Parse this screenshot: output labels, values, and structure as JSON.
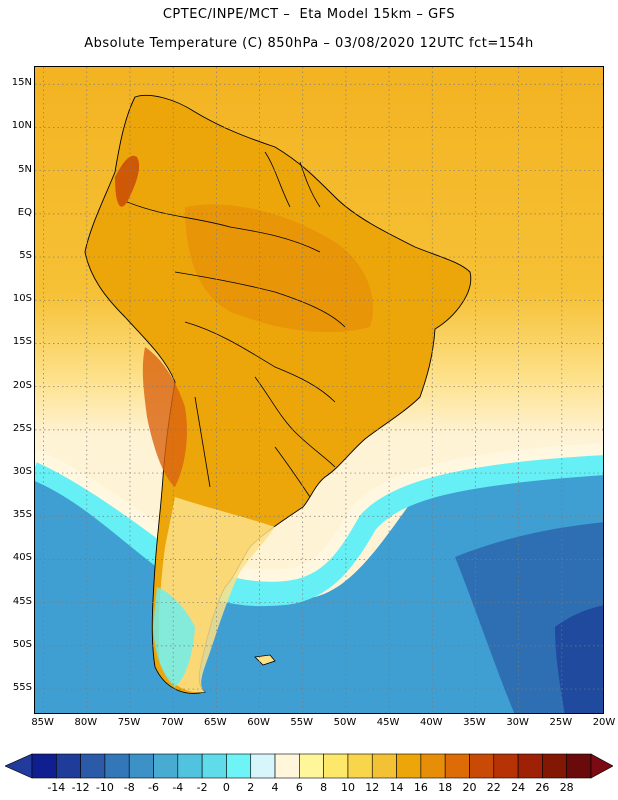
{
  "header": {
    "line1": "CPTEC/INPE/MCT –  Eta Model 15km – GFS",
    "line2": "Absolute Temperature (C) 850hPa – 03/08/2020 12UTC fct=154h"
  },
  "map": {
    "lat_labels": [
      "15N",
      "10N",
      "5N",
      "EQ",
      "5S",
      "10S",
      "15S",
      "20S",
      "25S",
      "30S",
      "35S",
      "40S",
      "45S",
      "50S",
      "55S"
    ],
    "lat_values": [
      15,
      10,
      5,
      0,
      -5,
      -10,
      -15,
      -20,
      -25,
      -30,
      -35,
      -40,
      -45,
      -50,
      -55
    ],
    "lat_range": [
      -58,
      17
    ],
    "lon_labels": [
      "85W",
      "80W",
      "75W",
      "70W",
      "65W",
      "60W",
      "55W",
      "50W",
      "45W",
      "40W",
      "35W",
      "30W",
      "25W",
      "20W"
    ],
    "lon_values": [
      -85,
      -80,
      -75,
      -70,
      -65,
      -60,
      -55,
      -50,
      -45,
      -40,
      -35,
      -30,
      -25,
      -20
    ],
    "lon_range": [
      -86,
      -20
    ],
    "grid": "dotted",
    "colors": {
      "land_hot": "#d9630f",
      "land_warm": "#eda60a",
      "ocean_trop": "#f5b91f",
      "ocean_mid": "#fce47a",
      "band_cream": "#fff7df",
      "band_cyan": "#66f5f5",
      "ocean_cold": "#3fa7d6",
      "ocean_colder": "#2f7dbd",
      "outline": "#000000"
    }
  },
  "colorbar": {
    "labels": [
      "-14",
      "-12",
      "-10",
      "-8",
      "-6",
      "-4",
      "-2",
      "0",
      "2",
      "4",
      "6",
      "8",
      "10",
      "12",
      "14",
      "16",
      "18",
      "20",
      "22",
      "24",
      "26",
      "28"
    ],
    "colors": [
      "#0f1f8f",
      "#1f3c9b",
      "#2a5aa8",
      "#3377b8",
      "#3c92c6",
      "#47abd2",
      "#52c3df",
      "#5fdbe9",
      "#6ef3f6",
      "#d6f6fb",
      "#fff6dc",
      "#fff59b",
      "#fde86a",
      "#f8d54b",
      "#f3c234",
      "#eda60a",
      "#e78e08",
      "#dd6b06",
      "#c94a06",
      "#b63305",
      "#9e2105",
      "#821804",
      "#6b0a0a"
    ],
    "arrow_left": "#213a9b",
    "arrow_right": "#7a0a14"
  }
}
